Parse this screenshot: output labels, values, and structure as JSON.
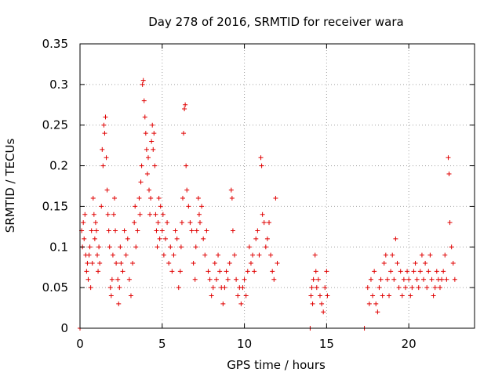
{
  "chart_data": {
    "type": "scatter",
    "title": "Day 278 of 2016, SRMTID for receiver wara",
    "xlabel": "GPS time / hours",
    "ylabel": "SRMTID / TECUs",
    "xlim": [
      0,
      24
    ],
    "ylim": [
      0,
      0.35
    ],
    "grid": true,
    "marker": "plus",
    "color": "#e00000",
    "x_ticks": [
      {
        "value": 0,
        "label": "0"
      },
      {
        "value": 5,
        "label": "5"
      },
      {
        "value": 10,
        "label": "10"
      },
      {
        "value": 15,
        "label": "15"
      },
      {
        "value": 20,
        "label": "20"
      }
    ],
    "y_ticks": [
      {
        "value": 0,
        "label": "0"
      },
      {
        "value": 0.05,
        "label": "0.05"
      },
      {
        "value": 0.1,
        "label": "0.1"
      },
      {
        "value": 0.15,
        "label": "0.15"
      },
      {
        "value": 0.2,
        "label": "0.2"
      },
      {
        "value": 0.25,
        "label": "0.25"
      },
      {
        "value": 0.3,
        "label": "0.3"
      },
      {
        "value": 0.35,
        "label": "0.35"
      }
    ],
    "series": [
      {
        "name": "SRMTID",
        "points": [
          [
            0.0,
            0.0
          ],
          [
            0.1,
            0.12
          ],
          [
            0.15,
            0.1
          ],
          [
            0.2,
            0.13
          ],
          [
            0.25,
            0.11
          ],
          [
            0.3,
            0.14
          ],
          [
            0.35,
            0.09
          ],
          [
            0.4,
            0.07
          ],
          [
            0.45,
            0.08
          ],
          [
            0.5,
            0.06
          ],
          [
            0.55,
            0.09
          ],
          [
            0.6,
            0.1
          ],
          [
            0.65,
            0.05
          ],
          [
            0.7,
            0.12
          ],
          [
            0.75,
            0.08
          ],
          [
            0.8,
            0.16
          ],
          [
            0.85,
            0.14
          ],
          [
            0.9,
            0.11
          ],
          [
            0.95,
            0.13
          ],
          [
            1.0,
            0.12
          ],
          [
            1.05,
            0.09
          ],
          [
            1.1,
            0.07
          ],
          [
            1.15,
            0.1
          ],
          [
            1.2,
            0.08
          ],
          [
            1.3,
            0.15
          ],
          [
            1.35,
            0.22
          ],
          [
            1.4,
            0.2
          ],
          [
            1.45,
            0.25
          ],
          [
            1.5,
            0.24
          ],
          [
            1.55,
            0.26
          ],
          [
            1.6,
            0.21
          ],
          [
            1.65,
            0.17
          ],
          [
            1.7,
            0.14
          ],
          [
            1.75,
            0.12
          ],
          [
            1.8,
            0.1
          ],
          [
            1.85,
            0.05
          ],
          [
            1.9,
            0.04
          ],
          [
            1.95,
            0.06
          ],
          [
            2.0,
            0.09
          ],
          [
            2.05,
            0.14
          ],
          [
            2.1,
            0.16
          ],
          [
            2.15,
            0.12
          ],
          [
            2.2,
            0.08
          ],
          [
            2.3,
            0.06
          ],
          [
            2.35,
            0.03
          ],
          [
            2.4,
            0.05
          ],
          [
            2.45,
            0.1
          ],
          [
            2.5,
            0.08
          ],
          [
            2.6,
            0.07
          ],
          [
            2.7,
            0.12
          ],
          [
            2.8,
            0.09
          ],
          [
            2.9,
            0.11
          ],
          [
            3.0,
            0.06
          ],
          [
            3.1,
            0.04
          ],
          [
            3.2,
            0.08
          ],
          [
            3.3,
            0.13
          ],
          [
            3.35,
            0.15
          ],
          [
            3.4,
            0.1
          ],
          [
            3.5,
            0.12
          ],
          [
            3.6,
            0.16
          ],
          [
            3.65,
            0.14
          ],
          [
            3.7,
            0.18
          ],
          [
            3.75,
            0.2
          ],
          [
            3.8,
            0.3
          ],
          [
            3.85,
            0.305
          ],
          [
            3.9,
            0.28
          ],
          [
            3.95,
            0.26
          ],
          [
            4.0,
            0.24
          ],
          [
            4.05,
            0.22
          ],
          [
            4.1,
            0.19
          ],
          [
            4.15,
            0.21
          ],
          [
            4.2,
            0.17
          ],
          [
            4.25,
            0.14
          ],
          [
            4.3,
            0.16
          ],
          [
            4.35,
            0.23
          ],
          [
            4.4,
            0.25
          ],
          [
            4.45,
            0.22
          ],
          [
            4.5,
            0.24
          ],
          [
            4.55,
            0.2
          ],
          [
            4.6,
            0.14
          ],
          [
            4.65,
            0.12
          ],
          [
            4.7,
            0.1
          ],
          [
            4.75,
            0.13
          ],
          [
            4.8,
            0.16
          ],
          [
            4.85,
            0.11
          ],
          [
            4.9,
            0.15
          ],
          [
            5.0,
            0.12
          ],
          [
            5.05,
            0.14
          ],
          [
            5.1,
            0.09
          ],
          [
            5.2,
            0.11
          ],
          [
            5.3,
            0.13
          ],
          [
            5.4,
            0.08
          ],
          [
            5.5,
            0.1
          ],
          [
            5.6,
            0.07
          ],
          [
            5.7,
            0.09
          ],
          [
            5.8,
            0.12
          ],
          [
            5.9,
            0.11
          ],
          [
            6.0,
            0.05
          ],
          [
            6.1,
            0.07
          ],
          [
            6.15,
            0.1
          ],
          [
            6.2,
            0.13
          ],
          [
            6.25,
            0.16
          ],
          [
            6.3,
            0.24
          ],
          [
            6.35,
            0.27
          ],
          [
            6.4,
            0.275
          ],
          [
            6.45,
            0.2
          ],
          [
            6.5,
            0.17
          ],
          [
            6.6,
            0.15
          ],
          [
            6.7,
            0.13
          ],
          [
            6.8,
            0.12
          ],
          [
            6.9,
            0.08
          ],
          [
            7.0,
            0.06
          ],
          [
            7.05,
            0.1
          ],
          [
            7.1,
            0.12
          ],
          [
            7.2,
            0.16
          ],
          [
            7.25,
            0.14
          ],
          [
            7.3,
            0.13
          ],
          [
            7.4,
            0.15
          ],
          [
            7.5,
            0.11
          ],
          [
            7.6,
            0.09
          ],
          [
            7.7,
            0.12
          ],
          [
            7.8,
            0.07
          ],
          [
            7.9,
            0.06
          ],
          [
            8.0,
            0.04
          ],
          [
            8.1,
            0.05
          ],
          [
            8.2,
            0.08
          ],
          [
            8.3,
            0.06
          ],
          [
            8.4,
            0.09
          ],
          [
            8.5,
            0.07
          ],
          [
            8.6,
            0.05
          ],
          [
            8.7,
            0.03
          ],
          [
            8.8,
            0.05
          ],
          [
            8.9,
            0.07
          ],
          [
            9.0,
            0.06
          ],
          [
            9.1,
            0.08
          ],
          [
            9.2,
            0.17
          ],
          [
            9.25,
            0.16
          ],
          [
            9.3,
            0.12
          ],
          [
            9.4,
            0.09
          ],
          [
            9.5,
            0.06
          ],
          [
            9.6,
            0.04
          ],
          [
            9.7,
            0.05
          ],
          [
            9.8,
            0.03
          ],
          [
            9.9,
            0.05
          ],
          [
            10.0,
            0.06
          ],
          [
            10.1,
            0.04
          ],
          [
            10.2,
            0.07
          ],
          [
            10.3,
            0.1
          ],
          [
            10.4,
            0.08
          ],
          [
            10.5,
            0.09
          ],
          [
            10.6,
            0.07
          ],
          [
            10.7,
            0.11
          ],
          [
            10.8,
            0.12
          ],
          [
            10.9,
            0.09
          ],
          [
            11.0,
            0.21
          ],
          [
            11.05,
            0.2
          ],
          [
            11.1,
            0.14
          ],
          [
            11.2,
            0.13
          ],
          [
            11.3,
            0.1
          ],
          [
            11.4,
            0.11
          ],
          [
            11.5,
            0.13
          ],
          [
            11.6,
            0.09
          ],
          [
            11.7,
            0.07
          ],
          [
            11.8,
            0.06
          ],
          [
            11.9,
            0.16
          ],
          [
            12.0,
            0.08
          ],
          [
            14.0,
            0.0
          ],
          [
            14.05,
            0.04
          ],
          [
            14.1,
            0.05
          ],
          [
            14.15,
            0.03
          ],
          [
            14.2,
            0.06
          ],
          [
            14.3,
            0.09
          ],
          [
            14.35,
            0.07
          ],
          [
            14.4,
            0.05
          ],
          [
            14.5,
            0.06
          ],
          [
            14.6,
            0.04
          ],
          [
            14.7,
            0.03
          ],
          [
            14.8,
            0.02
          ],
          [
            14.9,
            0.05
          ],
          [
            15.0,
            0.07
          ],
          [
            15.05,
            0.04
          ],
          [
            17.3,
            0.0
          ],
          [
            17.5,
            0.05
          ],
          [
            17.6,
            0.03
          ],
          [
            17.7,
            0.06
          ],
          [
            17.8,
            0.04
          ],
          [
            17.9,
            0.07
          ],
          [
            18.0,
            0.03
          ],
          [
            18.1,
            0.02
          ],
          [
            18.2,
            0.05
          ],
          [
            18.3,
            0.06
          ],
          [
            18.4,
            0.04
          ],
          [
            18.5,
            0.08
          ],
          [
            18.6,
            0.09
          ],
          [
            18.7,
            0.06
          ],
          [
            18.8,
            0.04
          ],
          [
            18.9,
            0.07
          ],
          [
            19.0,
            0.09
          ],
          [
            19.1,
            0.06
          ],
          [
            19.2,
            0.11
          ],
          [
            19.3,
            0.08
          ],
          [
            19.4,
            0.05
          ],
          [
            19.5,
            0.07
          ],
          [
            19.6,
            0.04
          ],
          [
            19.7,
            0.06
          ],
          [
            19.8,
            0.05
          ],
          [
            19.9,
            0.07
          ],
          [
            20.0,
            0.06
          ],
          [
            20.1,
            0.04
          ],
          [
            20.2,
            0.05
          ],
          [
            20.3,
            0.07
          ],
          [
            20.4,
            0.08
          ],
          [
            20.5,
            0.06
          ],
          [
            20.6,
            0.05
          ],
          [
            20.7,
            0.07
          ],
          [
            20.8,
            0.09
          ],
          [
            20.9,
            0.06
          ],
          [
            21.0,
            0.08
          ],
          [
            21.1,
            0.05
          ],
          [
            21.2,
            0.07
          ],
          [
            21.3,
            0.09
          ],
          [
            21.4,
            0.06
          ],
          [
            21.5,
            0.04
          ],
          [
            21.6,
            0.05
          ],
          [
            21.7,
            0.07
          ],
          [
            21.8,
            0.06
          ],
          [
            21.9,
            0.05
          ],
          [
            22.0,
            0.06
          ],
          [
            22.1,
            0.07
          ],
          [
            22.2,
            0.09
          ],
          [
            22.3,
            0.06
          ],
          [
            22.4,
            0.21
          ],
          [
            22.45,
            0.19
          ],
          [
            22.5,
            0.13
          ],
          [
            22.6,
            0.1
          ],
          [
            22.7,
            0.08
          ],
          [
            22.8,
            0.06
          ]
        ]
      }
    ]
  }
}
